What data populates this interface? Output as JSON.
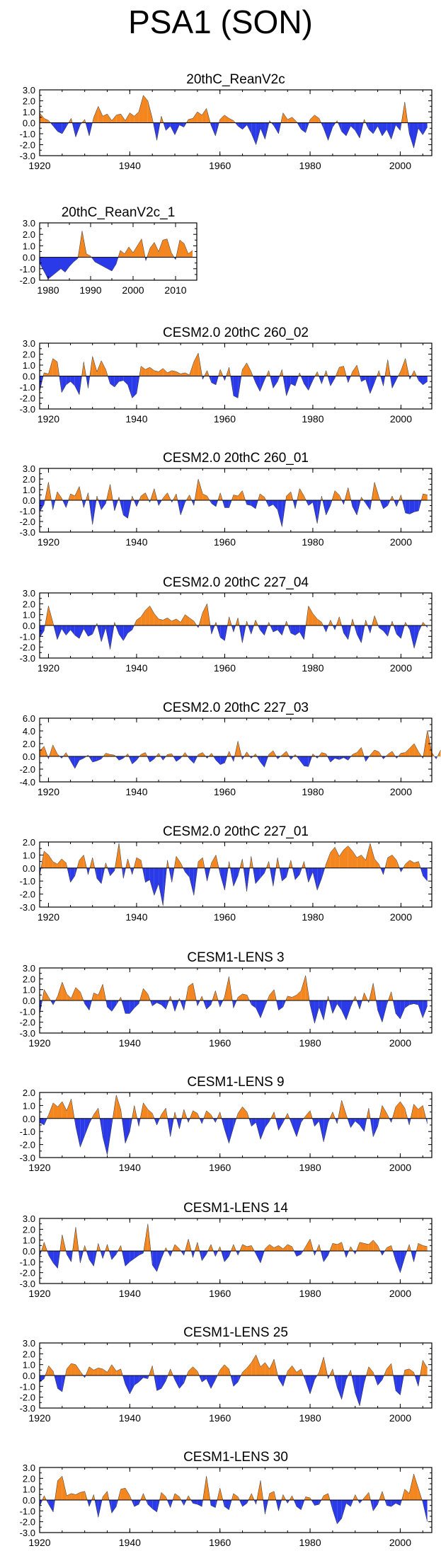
{
  "figure_title": "PSA1 (SON)",
  "colors": {
    "positive": "#f4861f",
    "negative": "#2b3ae8",
    "axis": "#000000"
  },
  "chart_data": [
    {
      "type": "area",
      "title": "20thC_ReanV2c",
      "xlim": [
        1920,
        2007
      ],
      "ylim": [
        -3,
        3
      ],
      "yticks": [
        "3.0",
        "2.0",
        "1.0",
        "0.0",
        "-1.0",
        "-2.0",
        "-3.0"
      ],
      "xticks": [
        "1920",
        "1940",
        "1960",
        "1980",
        "2000"
      ],
      "series_x_start": 1920,
      "values": [
        0.9,
        0.4,
        0.2,
        -0.3,
        -0.8,
        -1.0,
        -0.3,
        0.4,
        -1.3,
        -0.2,
        0.3,
        -1.2,
        0.5,
        1.5,
        0.6,
        0.8,
        0.2,
        0.7,
        0.8,
        0.2,
        0.9,
        0.6,
        1.0,
        2.5,
        2.0,
        0.4,
        -1.6,
        0.6,
        -0.7,
        -0.3,
        -1.1,
        -0.2,
        -0.4,
        0.3,
        0.4,
        1.0,
        0.7,
        1.3,
        -0.2,
        -1.2,
        0.3,
        0.7,
        0.4,
        0.2,
        -0.3,
        -0.6,
        -0.2,
        -1.0,
        -2.0,
        -0.5,
        -1.5,
        0.2,
        -0.3,
        -1.0,
        0.9,
        0.3,
        0.5,
        0.1,
        -0.6,
        -0.9,
        0.3,
        0.7,
        0.4,
        -0.5,
        -1.6,
        -0.4,
        0.2,
        -0.8,
        -1.2,
        -0.3,
        -0.7,
        -1.4,
        0.3,
        -0.6,
        -1.0,
        -0.3,
        -1.2,
        -0.6,
        -1.5,
        -0.2,
        -0.7,
        1.9,
        -1.0,
        -2.3,
        -0.5,
        -1.1,
        -0.4
      ]
    },
    {
      "type": "area",
      "title": "20thC_ReanV2c_1",
      "xlim": [
        1978,
        2015
      ],
      "ylim": [
        -2,
        3
      ],
      "yticks": [
        "3.0",
        "2.0",
        "1.0",
        "0.0",
        "-1.0",
        "-2.0"
      ],
      "xticks": [
        "1980",
        "1990",
        "2000",
        "2010"
      ],
      "series_x_start": 1978,
      "values": [
        -0.5,
        -1.2,
        -1.9,
        -1.6,
        -1.3,
        -1.0,
        -1.3,
        -0.8,
        -0.4,
        -0.1,
        2.3,
        0.3,
        0.1,
        -0.4,
        -0.6,
        -0.8,
        -1.0,
        -1.2,
        -0.6,
        0.6,
        0.3,
        0.9,
        0.4,
        1.0,
        1.6,
        -0.3,
        0.8,
        1.3,
        0.5,
        1.5,
        1.6,
        0.4,
        -0.2,
        1.5,
        1.2,
        0.3,
        0.6
      ]
    },
    {
      "type": "area",
      "title": "CESM2.0 20thC 260_02",
      "xlim": [
        1918,
        2007
      ],
      "ylim": [
        -3,
        3
      ],
      "yticks": [
        "3.0",
        "2.0",
        "1.0",
        "0.0",
        "-1.0",
        "-2.0",
        "-3.0"
      ],
      "xticks": [
        "1920",
        "1940",
        "1960",
        "1980",
        "2000"
      ],
      "series_x_start": 1918,
      "values": [
        -1.4,
        0.3,
        0.2,
        1.6,
        1.3,
        -1.5,
        -0.8,
        -0.5,
        -0.9,
        -1.7,
        1.3,
        -1.1,
        1.8,
        0.4,
        1.4,
        0.6,
        -0.7,
        -1.0,
        -0.5,
        -0.4,
        -0.8,
        -2.0,
        -1.6,
        0.9,
        0.6,
        0.8,
        0.5,
        0.4,
        0.7,
        0.3,
        0.5,
        0.4,
        0.2,
        0.3,
        0.1,
        1.3,
        2.1,
        -0.3,
        0.5,
        -0.6,
        -0.8,
        0.6,
        -0.4,
        0.8,
        -1.8,
        -2.0,
        0.6,
        1.2,
        0.4,
        -0.6,
        -1.4,
        -0.4,
        0.5,
        -1.1,
        -0.5,
        0.6,
        -1.8,
        -0.7,
        -0.9,
        0.3,
        -0.7,
        -1.3,
        -0.4,
        0.4,
        -0.7,
        0.5,
        -0.9,
        -0.2,
        0.8,
        0.9,
        -0.6,
        0.4,
        1.0,
        -0.5,
        -0.3,
        -1.6,
        -0.6,
        0.5,
        -0.9,
        1.5,
        -1.1,
        -0.3,
        0.5,
        1.6,
        -0.3,
        0.5,
        -0.4,
        -0.8,
        -0.5
      ]
    },
    {
      "type": "area",
      "title": "CESM2.0 20thC 260_01",
      "xlim": [
        1918,
        2007
      ],
      "ylim": [
        -3,
        3
      ],
      "yticks": [
        "3.0",
        "2.0",
        "1.0",
        "0.0",
        "-1.0",
        "-2.0",
        "-3.0"
      ],
      "xticks": [
        "1920",
        "1940",
        "1960",
        "1980",
        "2000"
      ],
      "series_x_start": 1918,
      "values": [
        -1.1,
        -0.4,
        1.7,
        -0.9,
        0.8,
        0.2,
        -0.7,
        0.6,
        0.4,
        1.3,
        -0.7,
        0.7,
        -2.3,
        0.4,
        -0.9,
        -0.3,
        1.5,
        -1.0,
        0.3,
        -1.4,
        -1.7,
        0.4,
        -0.6,
        0.4,
        0.7,
        -0.2,
        1.1,
        -0.5,
        0.2,
        0.7,
        -0.2,
        0.6,
        -1.4,
        -0.2,
        0.5,
        -0.5,
        2.0,
        0.6,
        0.4,
        -0.3,
        -0.6,
        0.7,
        -0.7,
        -0.7,
        0.5,
        0.4,
        0.9,
        -0.4,
        -0.5,
        -0.8,
        0.6,
        0.3,
        -0.6,
        -0.4,
        -0.9,
        -2.5,
        0.4,
        0.8,
        -0.8,
        1.1,
        0.4,
        -0.5,
        -0.2,
        -2.2,
        0.4,
        -1.4,
        -0.5,
        0.9,
        0.5,
        -0.4,
        1.2,
        -0.6,
        -1.4,
        0.3,
        -0.3,
        -0.9,
        1.7,
        0.3,
        -0.8,
        -0.5,
        0.4,
        -0.6,
        0.5,
        -1.2,
        -1.3,
        -1.1,
        -1.0,
        0.6,
        0.5
      ]
    },
    {
      "type": "area",
      "title": "CESM2.0 20thC 227_04",
      "xlim": [
        1918,
        2007
      ],
      "ylim": [
        -3,
        3
      ],
      "yticks": [
        "3.0",
        "2.0",
        "1.0",
        "0.0",
        "-1.0",
        "-2.0",
        "-3.0"
      ],
      "xticks": [
        "1920",
        "1940",
        "1960",
        "1980",
        "2000"
      ],
      "series_x_start": 1918,
      "values": [
        -1.1,
        -0.5,
        1.8,
        0.3,
        -1.3,
        -0.3,
        -0.9,
        -0.4,
        -0.9,
        -1.2,
        -0.3,
        -1.0,
        -0.8,
        0.2,
        -1.5,
        -0.2,
        -2.2,
        0.3,
        -0.8,
        -1.4,
        -0.7,
        -0.4,
        0.5,
        0.8,
        1.4,
        1.8,
        1.1,
        0.6,
        0.5,
        0.7,
        0.4,
        0.6,
        0.3,
        1.0,
        0.7,
        0.4,
        -0.2,
        1.2,
        2.0,
        -0.8,
        0.3,
        -1.1,
        -1.4,
        0.8,
        -0.6,
        0.7,
        -1.6,
        0.4,
        -0.8,
        0.5,
        -0.4,
        -0.9,
        0.3,
        -0.6,
        -0.4,
        -0.9,
        0.4,
        -0.7,
        -0.9,
        -0.6,
        -1.3,
        1.8,
        1.1,
        0.6,
        0.3,
        -0.6,
        0.5,
        -0.4,
        0.8,
        -0.7,
        -1.3,
        0.6,
        -0.8,
        -1.6,
        0.5,
        -0.7,
        0.9,
        -0.2,
        -0.5,
        -1.0,
        0.4,
        -0.8,
        -1.2,
        0.3,
        -0.4,
        -2.1,
        -0.6,
        0.3,
        -0.2
      ]
    },
    {
      "type": "area",
      "title": "CESM2.0 20thC 227_03",
      "xlim": [
        1918,
        2007
      ],
      "ylim": [
        -4,
        6
      ],
      "yticks": [
        "6.0",
        "4.0",
        "2.0",
        "0.0",
        "-2.0",
        "-4.0"
      ],
      "xticks": [
        "1920",
        "1940",
        "1960",
        "1980",
        "2000"
      ],
      "series_x_start": 1918,
      "values": [
        0.8,
        1.6,
        -0.4,
        1.8,
        0.4,
        -0.3,
        0.6,
        -0.7,
        -1.9,
        -0.6,
        -0.3,
        0.2,
        -0.9,
        -0.7,
        -0.4,
        0.5,
        0.3,
        0.2,
        -0.6,
        -0.3,
        0.4,
        -1.2,
        -0.6,
        0.3,
        0.6,
        -0.9,
        -0.4,
        0.5,
        -0.6,
        0.3,
        0.4,
        -0.8,
        -0.3,
        0.6,
        -0.4,
        -1.1,
        0.3,
        0.6,
        -0.3,
        0.5,
        -0.6,
        -1.3,
        -1.0,
        0.8,
        -0.8,
        2.4,
        -0.5,
        0.7,
        -0.3,
        0.4,
        -0.8,
        -1.7,
        0.3,
        0.9,
        -0.4,
        0.2,
        0.8,
        -0.5,
        0.3,
        -0.6,
        -1.5,
        -1.6,
        0.4,
        -0.3,
        0.6,
        0.4,
        -0.9,
        -0.3,
        -0.5,
        -0.2,
        -0.6,
        0.3,
        0.6,
        1.4,
        -0.8,
        0.2,
        1.0,
        0.7,
        -0.4,
        0.3,
        0.8,
        -0.3,
        0.5,
        0.6,
        1.3,
        2.0,
        0.7,
        -0.3,
        4.1,
        0.6,
        -0.4,
        1.0
      ]
    },
    {
      "type": "area",
      "title": "CESM2.0 20thC 227_01",
      "xlim": [
        1918,
        2007
      ],
      "ylim": [
        -3,
        2
      ],
      "yticks": [
        "2.0",
        "1.0",
        "0.0",
        "-1.0",
        "-2.0",
        "-3.0"
      ],
      "xticks": [
        "1920",
        "1940",
        "1960",
        "1980",
        "2000"
      ],
      "series_x_start": 1918,
      "values": [
        -0.6,
        1.3,
        1.0,
        0.5,
        0.3,
        0.7,
        0.4,
        -1.1,
        -0.6,
        0.6,
        1.0,
        -0.5,
        0.8,
        -0.8,
        -1.2,
        0.4,
        -0.6,
        -0.2,
        1.9,
        -0.8,
        0.7,
        -0.5,
        0.8,
        0.6,
        -1.1,
        -0.9,
        -2.1,
        -1.2,
        -2.9,
        0.6,
        -1.1,
        0.9,
        0.4,
        -0.3,
        -0.7,
        -2.1,
        0.5,
        0.8,
        -1.0,
        0.4,
        1.0,
        -0.5,
        -1.7,
        0.5,
        -1.4,
        -0.6,
        0.7,
        -1.8,
        0.9,
        -1.2,
        -0.8,
        -0.4,
        0.5,
        -1.4,
        0.8,
        -1.0,
        -0.7,
        0.6,
        -0.9,
        -0.5,
        0.5,
        -1.1,
        -0.3,
        -1.7,
        -0.8,
        0.3,
        1.2,
        1.6,
        0.9,
        1.4,
        1.7,
        1.3,
        0.8,
        1.0,
        0.6,
        1.9,
        0.7,
        0.3,
        -0.5,
        0.8,
        1.0,
        0.6,
        -0.3,
        0.3,
        0.6,
        0.4,
        0.5,
        -0.6,
        -1.0
      ]
    },
    {
      "type": "area",
      "title": "CESM1-LENS 3",
      "xlim": [
        1920,
        2007
      ],
      "ylim": [
        -3,
        3
      ],
      "yticks": [
        "3.0",
        "2.0",
        "1.0",
        "0.0",
        "-1.0",
        "-2.0",
        "-3.0"
      ],
      "xticks": [
        "1920",
        "1940",
        "1960",
        "1980",
        "2000"
      ],
      "series_x_start": 1920,
      "values": [
        -1.3,
        1.0,
        0.3,
        -0.4,
        0.4,
        1.7,
        0.6,
        0.2,
        1.2,
        0.8,
        -0.3,
        -0.9,
        0.7,
        0.5,
        1.5,
        -0.6,
        -1.0,
        -0.4,
        0.3,
        -1.2,
        -1.2,
        -0.7,
        -0.3,
        1.1,
        0.6,
        -0.5,
        -0.2,
        -0.4,
        -0.8,
        0.4,
        -1.0,
        0.2,
        -0.9,
        1.3,
        1.6,
        -0.5,
        0.4,
        -0.8,
        -0.4,
        0.9,
        -0.6,
        0.3,
        2.2,
        -0.7,
        0.3,
        0.6,
        0.5,
        -0.4,
        -0.7,
        -1.6,
        -0.5,
        0.5,
        1.0,
        -0.9,
        -0.6,
        0.4,
        0.3,
        0.5,
        0.9,
        2.3,
        -0.4,
        -2.1,
        -0.6,
        -1.8,
        0.4,
        -1.2,
        -0.3,
        -0.9,
        -1.8,
        -0.6,
        0.4,
        -0.8,
        0.7,
        -0.2,
        1.6,
        -0.9,
        -2.0,
        -0.4,
        0.8,
        -1.2,
        -1.7,
        -0.7,
        -0.4,
        -0.3,
        -0.4,
        -1.6,
        -0.5
      ]
    },
    {
      "type": "area",
      "title": "CESM1-LENS 9",
      "xlim": [
        1920,
        2007
      ],
      "ylim": [
        -3,
        2
      ],
      "yticks": [
        "2.0",
        "1.0",
        "0.0",
        "-1.0",
        "-2.0",
        "-3.0"
      ],
      "xticks": [
        "1920",
        "1940",
        "1960",
        "1980",
        "2000"
      ],
      "series_x_start": 1920,
      "values": [
        -0.3,
        -0.5,
        0.3,
        1.2,
        0.9,
        1.3,
        0.6,
        1.5,
        -0.6,
        -2.2,
        -1.3,
        -0.4,
        0.3,
        0.8,
        -1.4,
        -2.8,
        -0.5,
        1.8,
        0.7,
        -1.9,
        -1.0,
        1.0,
        -0.6,
        1.2,
        0.7,
        0.4,
        -0.5,
        0.3,
        0.8,
        -1.4,
        0.5,
        -0.8,
        0.7,
        -0.3,
        0.6,
        0.4,
        -0.4,
        0.6,
        0.3,
        -0.3,
        0.5,
        -0.8,
        -1.9,
        -0.7,
        0.4,
        0.9,
        0.5,
        -0.6,
        -0.3,
        -1.6,
        -0.7,
        -0.2,
        0.5,
        -0.9,
        -0.3,
        0.4,
        -0.5,
        -1.4,
        -0.3,
        0.2,
        0.6,
        -0.6,
        -0.2,
        -1.8,
        -0.3,
        0.5,
        -0.4,
        1.4,
        0.3,
        -0.7,
        -0.2,
        -0.5,
        -1.0,
        0.8,
        -1.4,
        -0.6,
        1.0,
        0.4,
        -0.3,
        0.9,
        1.3,
        0.8,
        -0.5,
        1.1,
        0.7,
        1.0,
        -0.4
      ]
    },
    {
      "type": "area",
      "title": "CESM1-LENS 14",
      "xlim": [
        1920,
        2007
      ],
      "ylim": [
        -3,
        3
      ],
      "yticks": [
        "3.0",
        "2.0",
        "1.0",
        "0.0",
        "-1.0",
        "-2.0",
        "-3.0"
      ],
      "xticks": [
        "1920",
        "1940",
        "1960",
        "1980",
        "2000"
      ],
      "series_x_start": 1920,
      "values": [
        -0.5,
        0.8,
        -0.4,
        -1.1,
        -1.6,
        1.5,
        -0.3,
        -1.0,
        2.2,
        -1.1,
        0.5,
        -0.8,
        -1.4,
        0.7,
        -0.7,
        0.6,
        -0.8,
        -0.3,
        0.5,
        -1.4,
        -1.0,
        -0.7,
        -0.4,
        -0.2,
        2.5,
        -1.3,
        -1.9,
        -0.7,
        0.3,
        -0.5,
        0.6,
        0.2,
        -0.4,
        1.1,
        -0.6,
        0.8,
        -0.9,
        -0.3,
        0.6,
        -0.5,
        0.4,
        -1.0,
        -0.5,
        0.6,
        -0.4,
        0.6,
        0.4,
        0.5,
        -0.3,
        -1.1,
        0.2,
        0.6,
        0.3,
        0.5,
        0.2,
        0.6,
        0.4,
        -0.5,
        -0.3,
        0.4,
        1.1,
        -0.4,
        0.6,
        -1.0,
        -0.4,
        0.7,
        0.6,
        0.8,
        -0.6,
        0.4,
        -0.3,
        0.8,
        0.7,
        0.6,
        1.0,
        0.5,
        -0.4,
        0.3,
        0.5,
        -0.9,
        -2.0,
        -0.6,
        0.6,
        -1.0,
        0.7,
        0.5,
        0.4
      ]
    },
    {
      "type": "area",
      "title": "CESM1-LENS 25",
      "xlim": [
        1920,
        2007
      ],
      "ylim": [
        -3,
        3
      ],
      "yticks": [
        "3.0",
        "2.0",
        "1.0",
        "0.0",
        "-1.0",
        "-2.0",
        "-3.0"
      ],
      "xticks": [
        "1920",
        "1940",
        "1960",
        "1980",
        "2000"
      ],
      "series_x_start": 1920,
      "values": [
        -0.6,
        -0.3,
        0.9,
        0.4,
        -1.2,
        -1.5,
        0.6,
        1.1,
        1.0,
        0.4,
        -0.2,
        0.8,
        0.5,
        0.7,
        0.6,
        0.3,
        1.0,
        0.4,
        0.6,
        -0.8,
        -1.7,
        -0.9,
        -0.6,
        -0.2,
        -0.3,
        0.9,
        -1.4,
        -1.2,
        -0.5,
        0.6,
        -0.4,
        -1.2,
        -0.7,
        0.4,
        0.8,
        0.4,
        -0.6,
        -0.3,
        -1.2,
        -0.4,
        0.5,
        1.0,
        0.6,
        -1.0,
        -0.6,
        0.3,
        0.7,
        1.2,
        1.9,
        0.8,
        1.2,
        0.6,
        1.5,
        -0.3,
        -1.0,
        0.4,
        0.9,
        0.3,
        0.6,
        -0.5,
        -1.7,
        -0.4,
        0.3,
        1.7,
        -0.3,
        0.6,
        -1.1,
        -2.2,
        -0.4,
        0.5,
        -1.6,
        -2.8,
        -0.7,
        0.8,
        0.3,
        -0.9,
        -0.4,
        0.6,
        1.1,
        -1.4,
        -1.8,
        0.5,
        0.6,
        0.3,
        -1.0,
        1.4,
        0.7
      ]
    },
    {
      "type": "area",
      "title": "CESM1-LENS 30",
      "xlim": [
        1920,
        2007
      ],
      "ylim": [
        -3,
        3
      ],
      "yticks": [
        "3.0",
        "2.0",
        "1.0",
        "0.0",
        "-1.0",
        "-2.0",
        "-3.0"
      ],
      "xticks": [
        "1920",
        "1940",
        "1960",
        "1980",
        "2000"
      ],
      "series_x_start": 1920,
      "values": [
        -0.6,
        0.4,
        -0.4,
        -1.1,
        1.8,
        2.2,
        0.4,
        0.6,
        0.5,
        0.7,
        0.8,
        -0.6,
        0.5,
        -1.6,
        0.3,
        0.8,
        -1.2,
        -0.6,
        1.0,
        1.1,
        0.4,
        -0.6,
        -0.4,
        0.6,
        -0.4,
        -0.8,
        -1.1,
        0.7,
        0.3,
        -0.7,
        0.6,
        0.3,
        -0.5,
        0.4,
        -0.3,
        -0.4,
        -0.6,
        2.2,
        -0.5,
        -0.7,
        1.1,
        -0.6,
        -0.9,
        0.6,
        0.3,
        -0.6,
        -0.3,
        0.6,
        -0.4,
        1.8,
        -1.3,
        0.6,
        0.8,
        -1.0,
        0.5,
        -0.3,
        0.4,
        -0.6,
        -0.9,
        0.3,
        0.2,
        -0.5,
        -0.4,
        0.4,
        0.6,
        -0.9,
        -2.2,
        -1.7,
        -0.3,
        -0.6,
        0.5,
        -0.3,
        0.2,
        0.7,
        -1.0,
        -0.4,
        0.8,
        -0.5,
        -0.6,
        -0.3,
        -0.5,
        1.0,
        0.6,
        2.4,
        1.1,
        -0.2,
        -2.0
      ]
    }
  ]
}
